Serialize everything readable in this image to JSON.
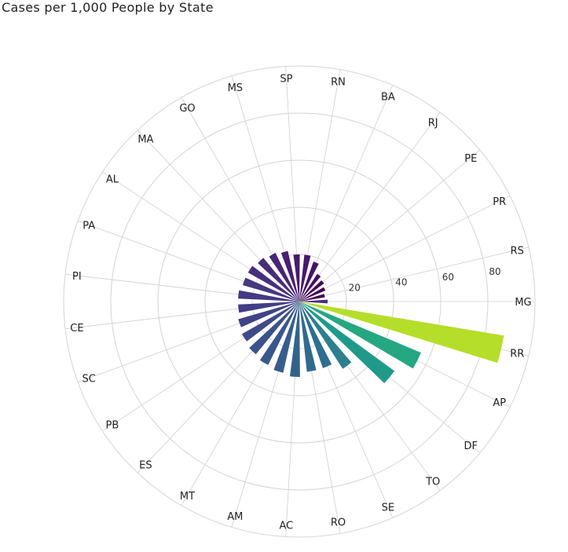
{
  "chart_data": {
    "type": "bar",
    "polar": true,
    "title": "Cases per 1,000 People by State",
    "categories": [
      "MG",
      "RR",
      "AP",
      "DF",
      "TO",
      "SE",
      "RO",
      "AC",
      "AM",
      "MT",
      "ES",
      "PB",
      "SC",
      "CE",
      "PI",
      "PA",
      "AL",
      "MA",
      "GO",
      "MS",
      "SP",
      "RN",
      "BA",
      "RJ",
      "PE",
      "PR",
      "RS"
    ],
    "values": [
      12,
      88,
      56,
      50,
      34,
      30,
      30,
      32,
      31,
      30,
      29,
      28,
      27,
      26,
      26,
      25,
      25,
      24,
      23,
      22,
      20,
      20,
      18,
      14,
      13,
      12,
      11
    ],
    "colors": [
      "#46327e",
      "#b5de2b",
      "#25a782",
      "#1f9a8a",
      "#2c7f8e",
      "#2e6e8e",
      "#316a8d",
      "#33638d",
      "#365d8d",
      "#38588c",
      "#3b528b",
      "#3f4a8a",
      "#404387",
      "#423e86",
      "#443983",
      "#453781",
      "#46307e",
      "#472c7a",
      "#482475",
      "#481e70",
      "#481a6c",
      "#48186a",
      "#471365",
      "#470e61",
      "#46085c",
      "#440256",
      "#440154"
    ],
    "rticks": [
      20,
      40,
      60,
      80
    ],
    "rlim": [
      0,
      100
    ],
    "grid": true,
    "direction": "clockwise",
    "start_angle": "east"
  }
}
